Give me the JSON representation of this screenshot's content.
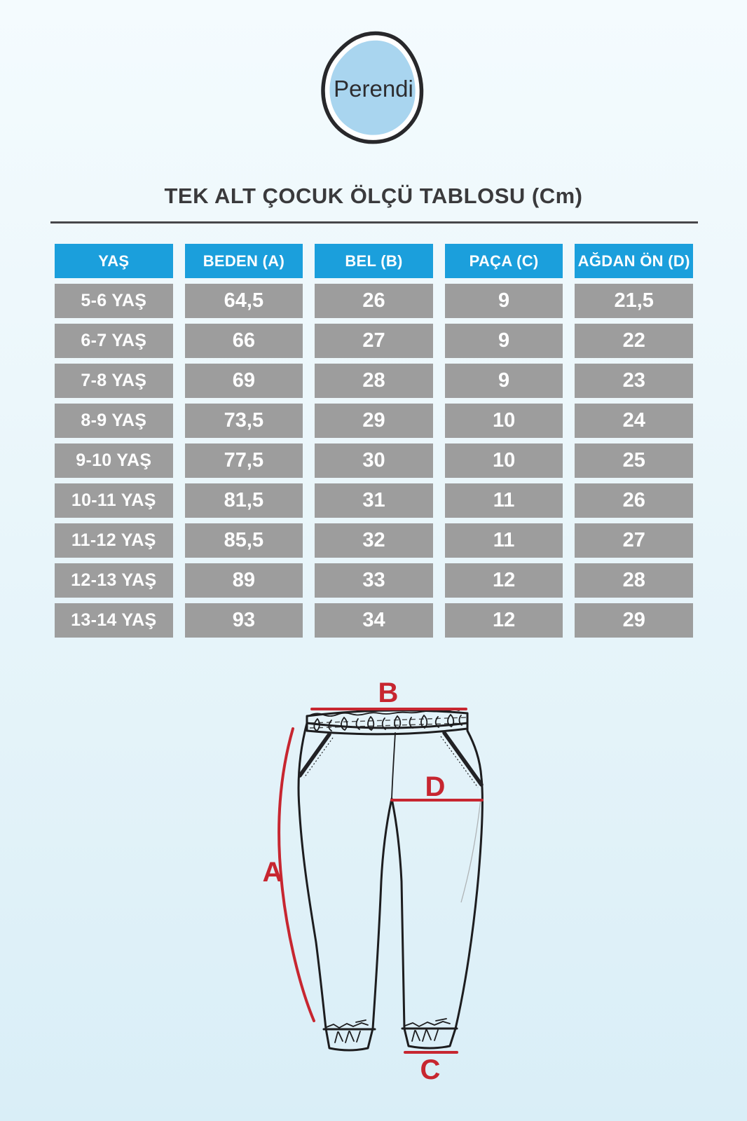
{
  "brand": {
    "name": "Perendi"
  },
  "title": "TEK ALT ÇOCUK ÖLÇÜ TABLOSU (Cm)",
  "table": {
    "headers": [
      "YAŞ",
      "BEDEN (A)",
      "BEL (B)",
      "PAÇA (C)",
      "AĞDAN ÖN (D)"
    ],
    "rows": [
      {
        "age": "5-6 YAŞ",
        "values": [
          "64,5",
          "26",
          "9",
          "21,5"
        ]
      },
      {
        "age": "6-7 YAŞ",
        "values": [
          "66",
          "27",
          "9",
          "22"
        ]
      },
      {
        "age": "7-8 YAŞ",
        "values": [
          "69",
          "28",
          "9",
          "23"
        ]
      },
      {
        "age": "8-9 YAŞ",
        "values": [
          "73,5",
          "29",
          "10",
          "24"
        ]
      },
      {
        "age": "9-10 YAŞ",
        "values": [
          "77,5",
          "30",
          "10",
          "25"
        ]
      },
      {
        "age": "10-11 YAŞ",
        "values": [
          "81,5",
          "31",
          "11",
          "26"
        ]
      },
      {
        "age": "11-12 YAŞ",
        "values": [
          "85,5",
          "32",
          "11",
          "27"
        ]
      },
      {
        "age": "12-13 YAŞ",
        "values": [
          "89",
          "33",
          "12",
          "28"
        ]
      },
      {
        "age": "13-14 YAŞ",
        "values": [
          "93",
          "34",
          "12",
          "29"
        ]
      }
    ]
  },
  "diagram": {
    "labels": {
      "a": "A",
      "b": "B",
      "c": "C",
      "d": "D"
    }
  },
  "colors": {
    "header_blue": "#1b9fdc",
    "cell_gray": "#9d9d9d",
    "measure_red": "#c72630",
    "logo_blue": "#a9d5ef",
    "ink": "#3a3a3c"
  }
}
